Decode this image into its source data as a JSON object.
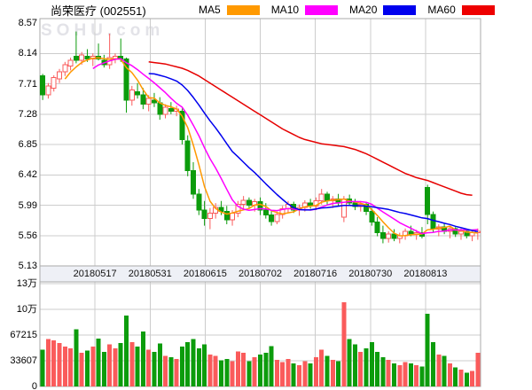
{
  "header": {
    "title": "尚荣医疗 (002551)",
    "legend": [
      {
        "label": "MA5",
        "color": "#ff9900"
      },
      {
        "label": "MA10",
        "color": "#ff00ff"
      },
      {
        "label": "MA20",
        "color": "#0000ee"
      },
      {
        "label": "MA60",
        "color": "#ee0000"
      }
    ]
  },
  "watermark": "SOHU.com",
  "chart_data": {
    "type": "candlestick+volume",
    "symbol": "尚荣医疗",
    "code": "002551",
    "grid": true,
    "price_ticks": [
      "8.57",
      "8.14",
      "7.71",
      "7.28",
      "6.85",
      "6.42",
      "5.99",
      "5.56",
      "5.13"
    ],
    "price_range": [
      5.13,
      8.57
    ],
    "volume_ticks": [
      {
        "label": "13万",
        "value": 134430
      },
      {
        "label": "10万",
        "value": 100822
      },
      {
        "label": "67215",
        "value": 67215
      },
      {
        "label": "33607",
        "value": 33607
      },
      {
        "label": "0",
        "value": 0
      }
    ],
    "volume_axis_max": 134430,
    "x_ticks": [
      "20180517",
      "20180531",
      "20180615",
      "20180702",
      "20180716",
      "20180730",
      "20180813"
    ],
    "colors": {
      "up": "#fa5b5b",
      "down": "#0c9c0c",
      "ma5": "#ff9900",
      "ma10": "#ff00ff",
      "ma20": "#0000ee",
      "ma60": "#e60000",
      "grid": "#cccccc",
      "border": "#aaaaaa",
      "date_band_bg": "#eef0f6"
    },
    "candles": [
      [
        7.82,
        7.85,
        7.48,
        7.55
      ],
      [
        7.55,
        7.72,
        7.5,
        7.68
      ],
      [
        7.65,
        7.83,
        7.6,
        7.8
      ],
      [
        7.78,
        7.92,
        7.72,
        7.88
      ],
      [
        7.88,
        8.02,
        7.82,
        7.98
      ],
      [
        7.96,
        8.08,
        7.9,
        8.04
      ],
      [
        8.1,
        8.45,
        8.0,
        8.04
      ],
      [
        8.04,
        8.16,
        7.98,
        8.12
      ],
      [
        8.1,
        8.2,
        8.02,
        8.06
      ],
      [
        8.06,
        8.14,
        7.96,
        8.1
      ],
      [
        8.1,
        8.28,
        8.04,
        8.06
      ],
      [
        8.04,
        8.12,
        7.94,
        7.98
      ],
      [
        7.98,
        8.42,
        7.92,
        8.08
      ],
      [
        8.06,
        8.14,
        8.0,
        8.1
      ],
      [
        8.1,
        8.35,
        8.02,
        8.06
      ],
      [
        8.06,
        8.08,
        7.3,
        7.48
      ],
      [
        7.48,
        7.68,
        7.4,
        7.62
      ],
      [
        7.6,
        7.72,
        7.5,
        7.55
      ],
      [
        7.55,
        7.65,
        7.35,
        7.42
      ],
      [
        7.42,
        7.55,
        7.32,
        7.5
      ],
      [
        7.48,
        7.58,
        7.38,
        7.44
      ],
      [
        7.44,
        7.52,
        7.2,
        7.28
      ],
      [
        7.28,
        7.42,
        7.22,
        7.38
      ],
      [
        7.36,
        7.45,
        7.28,
        7.32
      ],
      [
        7.32,
        7.4,
        7.25,
        7.35
      ],
      [
        7.32,
        7.36,
        6.85,
        6.92
      ],
      [
        6.9,
        6.98,
        6.4,
        6.48
      ],
      [
        6.48,
        6.6,
        6.08,
        6.15
      ],
      [
        6.15,
        6.22,
        5.85,
        5.92
      ],
      [
        5.92,
        6.05,
        5.7,
        5.8
      ],
      [
        5.8,
        5.95,
        5.65,
        5.88
      ],
      [
        5.88,
        6.02,
        5.8,
        5.96
      ],
      [
        5.96,
        6.05,
        5.85,
        5.9
      ],
      [
        5.9,
        5.98,
        5.72,
        5.78
      ],
      [
        5.78,
        5.92,
        5.7,
        5.88
      ],
      [
        5.88,
        6.05,
        5.82,
        6.0
      ],
      [
        6.0,
        6.12,
        5.92,
        6.06
      ],
      [
        6.06,
        6.1,
        5.95,
        5.99
      ],
      [
        5.99,
        6.08,
        5.9,
        6.04
      ],
      [
        6.04,
        6.1,
        5.85,
        5.92
      ],
      [
        5.92,
        6.02,
        5.8,
        5.85
      ],
      [
        5.85,
        5.92,
        5.7,
        5.76
      ],
      [
        5.76,
        5.9,
        5.72,
        5.86
      ],
      [
        5.86,
        5.98,
        5.8,
        5.94
      ],
      [
        5.94,
        6.05,
        5.88,
        6.0
      ],
      [
        6.0,
        6.04,
        5.88,
        5.92
      ],
      [
        5.92,
        6.0,
        5.84,
        5.96
      ],
      [
        5.96,
        6.06,
        5.9,
        6.02
      ],
      [
        6.02,
        6.08,
        5.94,
        5.98
      ],
      [
        5.98,
        6.1,
        5.92,
        6.05
      ],
      [
        6.05,
        6.22,
        6.0,
        6.15
      ],
      [
        6.15,
        6.18,
        6.0,
        6.05
      ],
      [
        6.05,
        6.12,
        5.95,
        6.08
      ],
      [
        6.08,
        6.15,
        5.98,
        6.02
      ],
      [
        5.82,
        6.12,
        5.75,
        6.08
      ],
      [
        6.08,
        6.14,
        5.98,
        6.02
      ],
      [
        6.02,
        6.08,
        5.92,
        5.97
      ],
      [
        5.97,
        6.05,
        5.9,
        6.0
      ],
      [
        6.0,
        6.04,
        5.85,
        5.9
      ],
      [
        5.9,
        5.95,
        5.7,
        5.75
      ],
      [
        5.75,
        5.82,
        5.55,
        5.6
      ],
      [
        5.6,
        5.7,
        5.45,
        5.52
      ],
      [
        5.52,
        5.62,
        5.46,
        5.58
      ],
      [
        5.58,
        5.65,
        5.48,
        5.52
      ],
      [
        5.52,
        5.6,
        5.45,
        5.56
      ],
      [
        5.56,
        5.66,
        5.5,
        5.62
      ],
      [
        5.62,
        5.7,
        5.55,
        5.58
      ],
      [
        5.58,
        5.64,
        5.5,
        5.6
      ],
      [
        5.6,
        5.68,
        5.52,
        5.55
      ],
      [
        6.24,
        6.28,
        5.72,
        5.86
      ],
      [
        5.86,
        5.9,
        5.6,
        5.65
      ],
      [
        5.65,
        5.72,
        5.55,
        5.68
      ],
      [
        5.68,
        5.74,
        5.58,
        5.62
      ],
      [
        5.62,
        5.7,
        5.52,
        5.66
      ],
      [
        5.66,
        5.68,
        5.54,
        5.58
      ],
      [
        5.58,
        5.66,
        5.5,
        5.62
      ],
      [
        5.62,
        5.65,
        5.52,
        5.56
      ],
      [
        5.56,
        5.64,
        5.48,
        5.6
      ],
      [
        5.6,
        5.66,
        5.5,
        5.62
      ]
    ],
    "volumes": [
      48000,
      62000,
      60000,
      57000,
      52000,
      50000,
      75000,
      44000,
      47000,
      52000,
      62500,
      45000,
      55000,
      50000,
      57000,
      93000,
      58000,
      52000,
      72000,
      48000,
      45000,
      56000,
      40000,
      38000,
      36000,
      52000,
      58000,
      62000,
      50000,
      55000,
      42000,
      40000,
      34000,
      36000,
      33000,
      46000,
      44000,
      33000,
      38000,
      42000,
      44000,
      53000,
      35000,
      32000,
      36000,
      30000,
      28000,
      33000,
      30000,
      38000,
      48000,
      40000,
      35000,
      33000,
      110000,
      62000,
      55000,
      45000,
      50000,
      58000,
      45000,
      38000,
      35000,
      30000,
      28000,
      32000,
      30000,
      28000,
      26000,
      95000,
      58000,
      42000,
      40000,
      30000,
      25000,
      22000,
      18000,
      20000,
      44000
    ],
    "ma60": [
      null,
      null,
      null,
      null,
      null,
      null,
      null,
      null,
      null,
      null,
      null,
      null,
      null,
      null,
      null,
      null,
      null,
      null,
      null,
      8.02,
      8.01,
      8.0,
      7.99,
      7.97,
      7.95,
      7.93,
      7.9,
      7.86,
      7.82,
      7.77,
      7.72,
      7.67,
      7.62,
      7.57,
      7.52,
      7.47,
      7.42,
      7.37,
      7.32,
      7.27,
      7.22,
      7.17,
      7.12,
      7.07,
      7.03,
      6.99,
      6.95,
      6.92,
      6.9,
      6.88,
      6.86,
      6.85,
      6.84,
      6.83,
      6.82,
      6.8,
      6.78,
      6.75,
      6.72,
      6.68,
      6.64,
      6.6,
      6.56,
      6.52,
      6.48,
      6.44,
      6.41,
      6.38,
      6.36,
      6.34,
      6.31,
      6.28,
      6.25,
      6.22,
      6.19,
      6.16,
      6.14,
      6.13,
      null
    ]
  }
}
